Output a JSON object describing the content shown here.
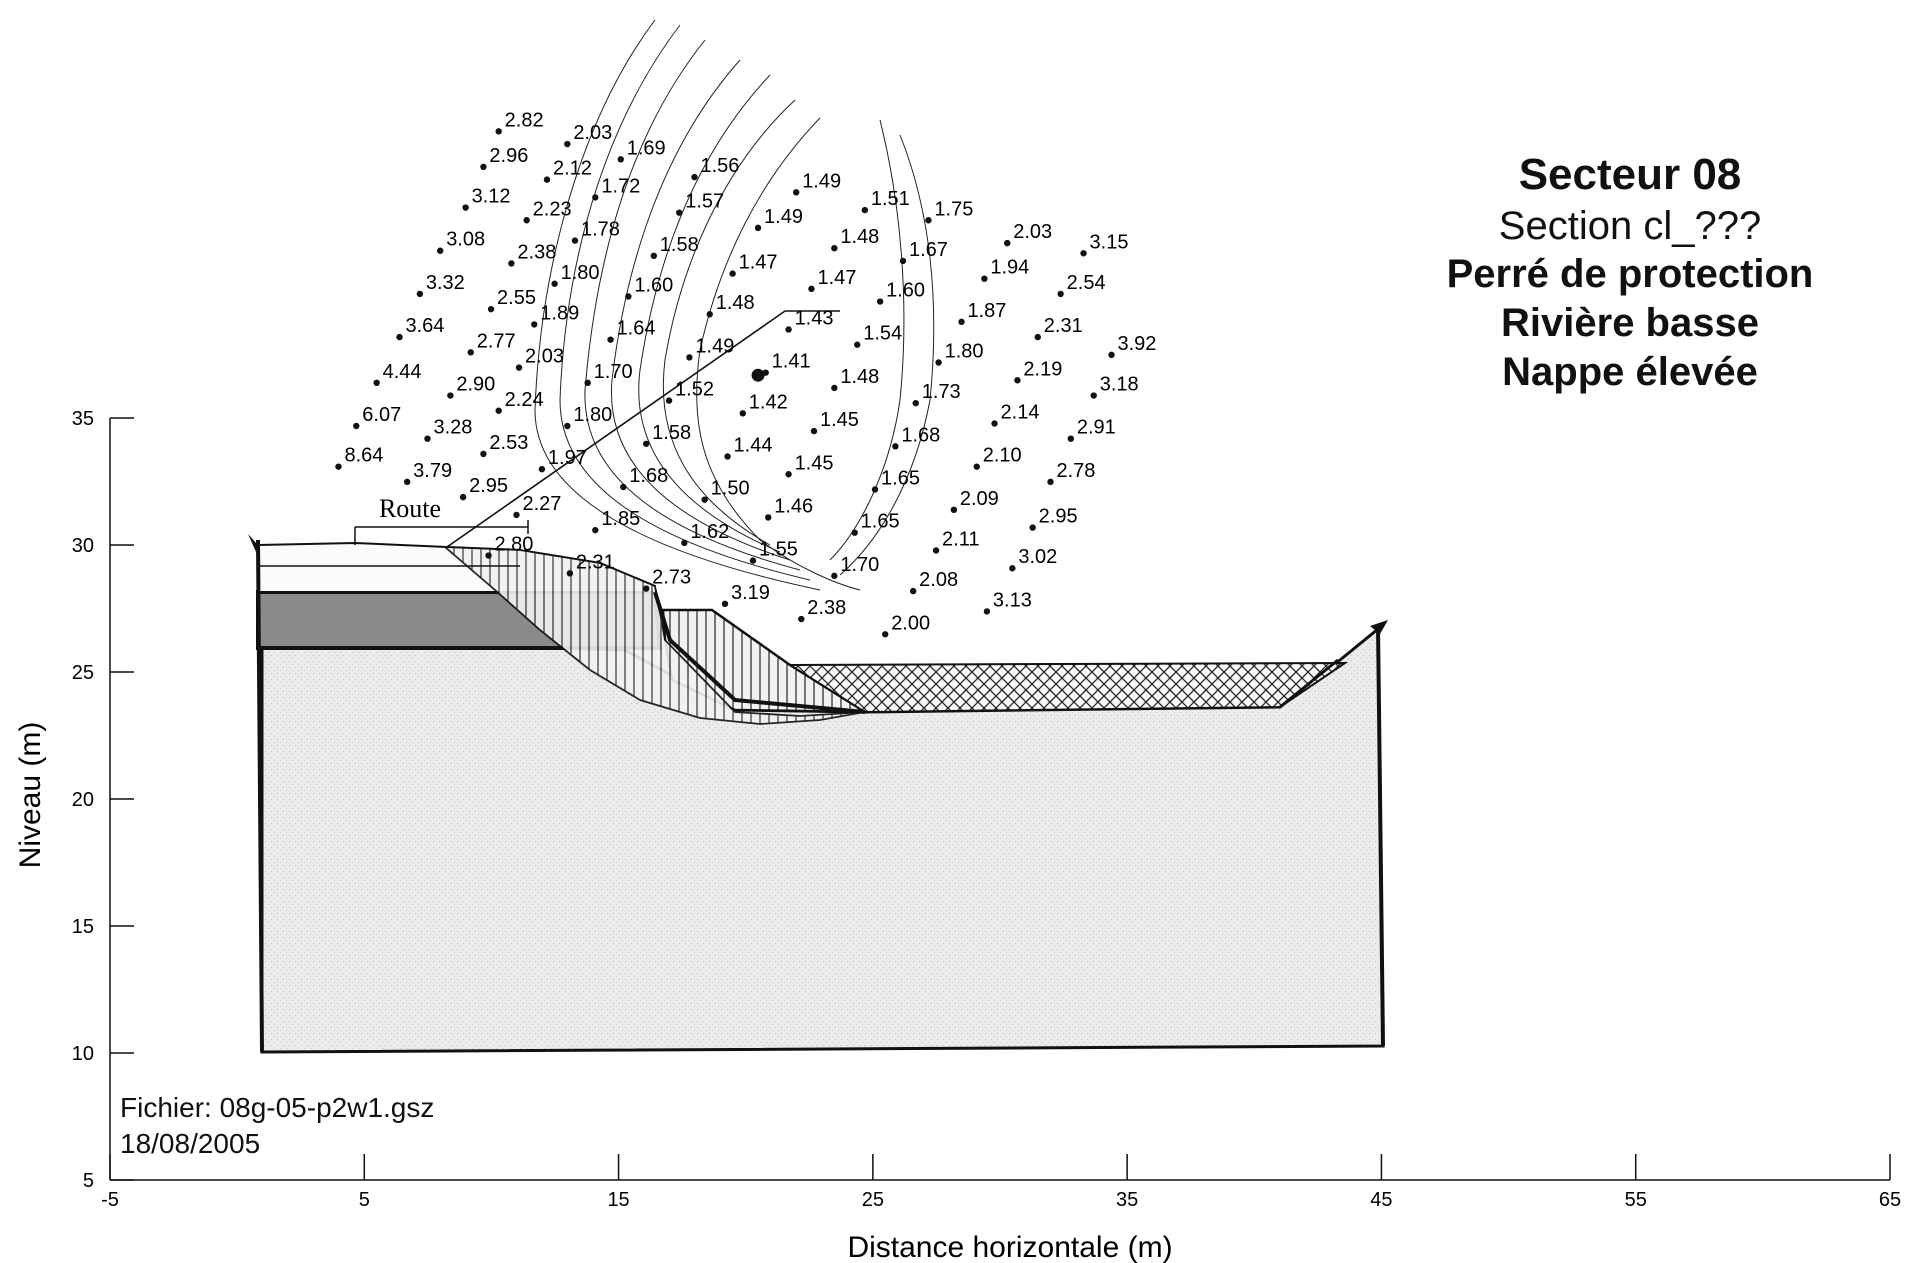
{
  "header": {
    "title": "Secteur 08",
    "section": "Section cl_???",
    "line3": "Perré de protection",
    "line4": "Rivière basse",
    "line5": "Nappe élevée"
  },
  "file_info": {
    "file": "Fichier: 08g-05-p2w1.gsz",
    "date": "18/08/2005"
  },
  "labels": {
    "road": "Route"
  },
  "axes": {
    "xlabel": "Distance horizontale (m)",
    "ylabel": "Niveau (m)",
    "xlim": [
      -5,
      65
    ],
    "ylim": [
      5,
      35
    ],
    "xticks": [
      -5,
      5,
      15,
      25,
      35,
      45,
      55,
      65
    ],
    "yticks": [
      5,
      10,
      15,
      20,
      25,
      30,
      35
    ]
  },
  "colors": {
    "line": "#111111",
    "dense_layer": "#8a8a8a",
    "foundation_fill": "#e9e9e9",
    "riprap_fill": "#f4f4f4"
  },
  "chart_data": {
    "type": "diagram",
    "safety_factor_grid": [
      {
        "v": "2.82",
        "x": 10.6,
        "y": 46.6
      },
      {
        "v": "2.03",
        "x": 13.3,
        "y": 46.1
      },
      {
        "v": "2.96",
        "x": 10.0,
        "y": 45.2
      },
      {
        "v": "2.12",
        "x": 12.5,
        "y": 44.7
      },
      {
        "v": "1.69",
        "x": 15.4,
        "y": 45.5
      },
      {
        "v": "1.56",
        "x": 18.3,
        "y": 44.8
      },
      {
        "v": "1.49",
        "x": 22.3,
        "y": 44.2
      },
      {
        "v": "1.72",
        "x": 14.4,
        "y": 44.0
      },
      {
        "v": "3.12",
        "x": 9.3,
        "y": 43.6
      },
      {
        "v": "2.23",
        "x": 11.7,
        "y": 43.1
      },
      {
        "v": "1.57",
        "x": 17.7,
        "y": 43.4
      },
      {
        "v": "1.51",
        "x": 25.0,
        "y": 43.5
      },
      {
        "v": "1.75",
        "x": 27.5,
        "y": 43.1
      },
      {
        "v": "1.49",
        "x": 20.8,
        "y": 42.8
      },
      {
        "v": "1.78",
        "x": 13.6,
        "y": 42.3
      },
      {
        "v": "3.08",
        "x": 8.3,
        "y": 41.9
      },
      {
        "v": "1.58",
        "x": 16.7,
        "y": 41.7
      },
      {
        "v": "1.48",
        "x": 23.8,
        "y": 42.0
      },
      {
        "v": "2.03",
        "x": 30.6,
        "y": 42.2
      },
      {
        "v": "3.15",
        "x": 33.6,
        "y": 41.8
      },
      {
        "v": "2.38",
        "x": 11.1,
        "y": 41.4
      },
      {
        "v": "1.67",
        "x": 26.5,
        "y": 41.5
      },
      {
        "v": "1.47",
        "x": 19.8,
        "y": 41.0
      },
      {
        "v": "1.80",
        "x": 12.8,
        "y": 40.6
      },
      {
        "v": "1.94",
        "x": 29.7,
        "y": 40.8
      },
      {
        "v": "3.32",
        "x": 7.5,
        "y": 40.2
      },
      {
        "v": "1.47",
        "x": 22.9,
        "y": 40.4
      },
      {
        "v": "2.54",
        "x": 32.7,
        "y": 40.2
      },
      {
        "v": "1.60",
        "x": 15.7,
        "y": 40.1
      },
      {
        "v": "2.55",
        "x": 10.3,
        "y": 39.6
      },
      {
        "v": "1.60",
        "x": 25.6,
        "y": 39.9
      },
      {
        "v": "1.48",
        "x": 18.9,
        "y": 39.4
      },
      {
        "v": "1.89",
        "x": 12.0,
        "y": 39.0
      },
      {
        "v": "1.87",
        "x": 28.8,
        "y": 39.1
      },
      {
        "v": "1.43",
        "x": 22.0,
        "y": 38.8
      },
      {
        "v": "3.64",
        "x": 6.7,
        "y": 38.5
      },
      {
        "v": "1.64",
        "x": 15.0,
        "y": 38.4
      },
      {
        "v": "2.31",
        "x": 31.8,
        "y": 38.5
      },
      {
        "v": "1.54",
        "x": 24.7,
        "y": 38.2
      },
      {
        "v": "3.92",
        "x": 34.7,
        "y": 37.8
      },
      {
        "v": "2.77",
        "x": 9.5,
        "y": 37.9
      },
      {
        "v": "1.49",
        "x": 18.1,
        "y": 37.7
      },
      {
        "v": "1.80",
        "x": 27.9,
        "y": 37.5
      },
      {
        "v": "2.03",
        "x": 11.4,
        "y": 37.3
      },
      {
        "v": "1.41",
        "x": 21.1,
        "y": 37.1
      },
      {
        "v": "1.70",
        "x": 14.1,
        "y": 36.7
      },
      {
        "v": "2.19",
        "x": 31.0,
        "y": 36.8
      },
      {
        "v": "4.44",
        "x": 5.8,
        "y": 36.7
      },
      {
        "v": "1.48",
        "x": 23.8,
        "y": 36.5
      },
      {
        "v": "2.90",
        "x": 8.7,
        "y": 36.2
      },
      {
        "v": "3.18",
        "x": 34.0,
        "y": 36.2
      },
      {
        "v": "1.52",
        "x": 17.3,
        "y": 36.0
      },
      {
        "v": "1.73",
        "x": 27.0,
        "y": 35.9
      },
      {
        "v": "2.24",
        "x": 10.6,
        "y": 35.6
      },
      {
        "v": "1.42",
        "x": 20.2,
        "y": 35.5
      },
      {
        "v": "2.14",
        "x": 30.1,
        "y": 35.1
      },
      {
        "v": "6.07",
        "x": 5.0,
        "y": 35.0
      },
      {
        "v": "1.80",
        "x": 13.3,
        "y": 35.0
      },
      {
        "v": "1.45",
        "x": 23.0,
        "y": 34.8
      },
      {
        "v": "3.28",
        "x": 7.8,
        "y": 34.5
      },
      {
        "v": "2.91",
        "x": 33.1,
        "y": 34.5
      },
      {
        "v": "1.58",
        "x": 16.4,
        "y": 34.3
      },
      {
        "v": "1.68",
        "x": 26.2,
        "y": 34.2
      },
      {
        "v": "2.53",
        "x": 10.0,
        "y": 33.9
      },
      {
        "v": "1.44",
        "x": 19.6,
        "y": 33.8
      },
      {
        "v": "8.64",
        "x": 4.3,
        "y": 33.4
      },
      {
        "v": "1.97",
        "x": 12.3,
        "y": 33.3
      },
      {
        "v": "2.10",
        "x": 29.4,
        "y": 33.4
      },
      {
        "v": "1.45",
        "x": 22.0,
        "y": 33.1
      },
      {
        "v": "3.79",
        "x": 7.0,
        "y": 32.8
      },
      {
        "v": "2.78",
        "x": 32.3,
        "y": 32.8
      },
      {
        "v": "1.68",
        "x": 15.5,
        "y": 32.6
      },
      {
        "v": "1.65",
        "x": 25.4,
        "y": 32.5
      },
      {
        "v": "2.95",
        "x": 9.2,
        "y": 32.2
      },
      {
        "v": "1.50",
        "x": 18.7,
        "y": 32.1
      },
      {
        "v": "2.09",
        "x": 28.5,
        "y": 31.7
      },
      {
        "v": "2.27",
        "x": 11.3,
        "y": 31.5
      },
      {
        "v": "1.46",
        "x": 21.2,
        "y": 31.4
      },
      {
        "v": "2.95",
        "x": 31.6,
        "y": 31.0
      },
      {
        "v": "1.85",
        "x": 14.4,
        "y": 30.9
      },
      {
        "v": "1.65",
        "x": 24.6,
        "y": 30.8
      },
      {
        "v": "1.62",
        "x": 17.9,
        "y": 30.4
      },
      {
        "v": "2.11",
        "x": 27.8,
        "y": 30.1
      },
      {
        "v": "2.80",
        "x": 10.2,
        "y": 29.9
      },
      {
        "v": "1.55",
        "x": 20.6,
        "y": 29.7
      },
      {
        "v": "3.02",
        "x": 30.8,
        "y": 29.4
      },
      {
        "v": "2.31",
        "x": 13.4,
        "y": 29.2
      },
      {
        "v": "1.70",
        "x": 23.8,
        "y": 29.1
      },
      {
        "v": "2.73",
        "x": 16.4,
        "y": 28.6
      },
      {
        "v": "2.08",
        "x": 26.9,
        "y": 28.5
      },
      {
        "v": "3.19",
        "x": 19.5,
        "y": 28.0
      },
      {
        "v": "3.13",
        "x": 29.8,
        "y": 27.7
      },
      {
        "v": "2.38",
        "x": 22.5,
        "y": 27.4
      },
      {
        "v": "2.00",
        "x": 25.8,
        "y": 26.8
      }
    ],
    "critical_center": {
      "x": 20.8,
      "y": 37.0,
      "fs": "1.41"
    }
  }
}
